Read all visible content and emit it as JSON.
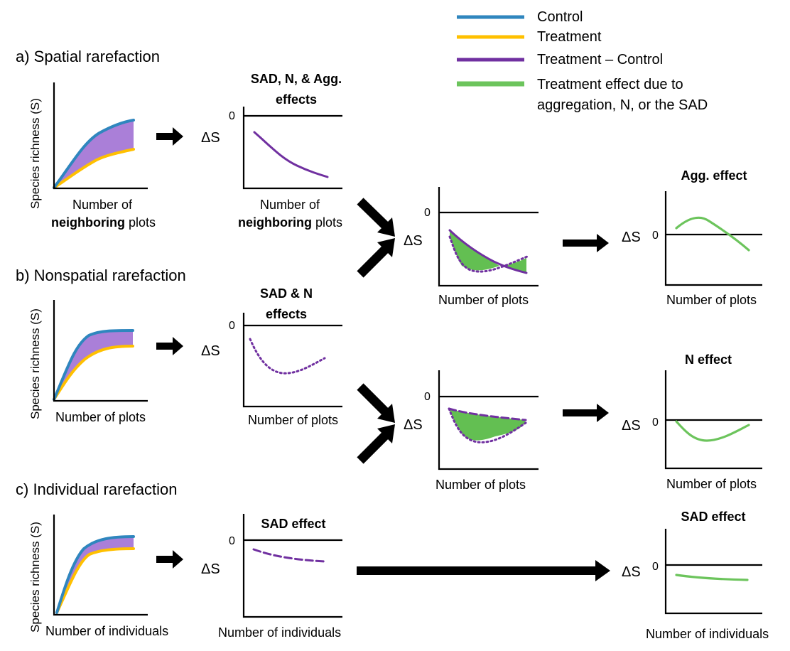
{
  "legend": {
    "control": "Control",
    "treatment": "Treatment",
    "difference": "Treatment – Control",
    "effect_line1": "Treatment effect due to",
    "effect_line2": "aggregation, N, or the SAD",
    "colors": {
      "control": "#2f86be",
      "treatment": "#ffc000",
      "difference": "#7030a0",
      "effect": "#6cc45c",
      "richness_fill": "#aa7fd8"
    }
  },
  "rows": {
    "a": {
      "label": "a)  Spatial rarefaction",
      "ylabel": "Species richness (S)",
      "xlabel_part1": "Number of",
      "xlabel_bold": "neighboring",
      "xlabel_part3": "plots",
      "delta_title_line1": "SAD, N, & Agg.",
      "delta_title_line2": "effects",
      "delta_xlabel_part1": "Number of",
      "delta_xlabel_bold": "neighboring",
      "delta_xlabel_part3": "plots"
    },
    "b": {
      "label": "b) Nonspatial rarefaction",
      "ylabel": "Species richness (S)",
      "xlabel": "Number of plots",
      "delta_title_line1": "SAD & N",
      "delta_title_line2": "effects",
      "delta_xlabel": "Number of plots"
    },
    "c": {
      "label": "c) Individual rarefaction",
      "ylabel": "Species richness (S)",
      "xlabel": "Number of individuals",
      "delta_title": "SAD effect",
      "delta_xlabel": "Number of individuals"
    }
  },
  "combined": {
    "top_xlabel": "Number of plots",
    "bottom_xlabel": "Number of plots"
  },
  "effects": {
    "agg_title": "Agg. effect",
    "agg_xlabel": "Number of plots",
    "n_title": "N effect",
    "n_xlabel": "Number of plots",
    "sad_title": "SAD effect",
    "sad_xlabel": "Number of individuals"
  },
  "common": {
    "delta_s": "ΔS",
    "zero": "0"
  }
}
